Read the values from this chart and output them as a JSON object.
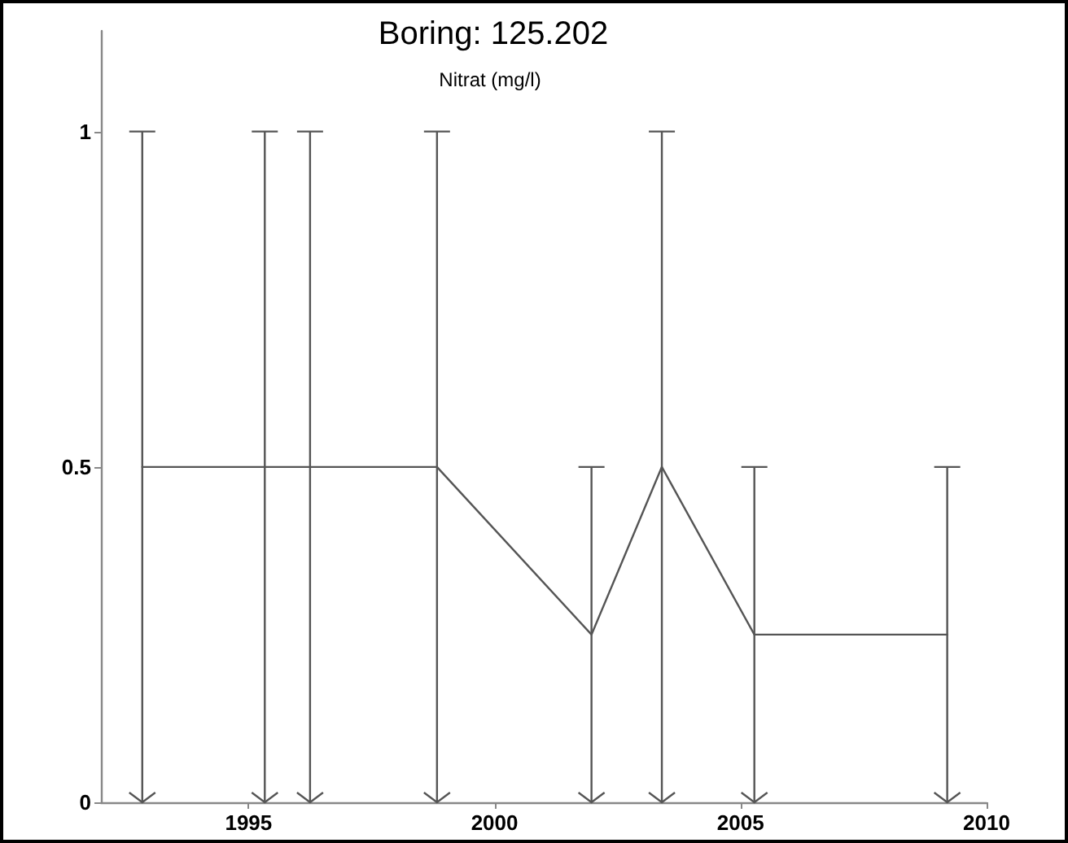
{
  "chart_data": {
    "type": "line",
    "title": "Boring: 125.202",
    "subtitle": "Nitrat (mg/l)",
    "x": [
      1992.84,
      1995.33,
      1996.25,
      1998.83,
      2001.97,
      2003.4,
      2005.28,
      2009.2
    ],
    "series": [
      {
        "color": "#555555",
        "values": [
          0.5,
          0.5,
          0.5,
          0.5,
          0.25,
          0.5,
          0.25,
          0.25
        ],
        "errors": [
          [
            0,
            1
          ],
          [
            0,
            1
          ],
          [
            0,
            1
          ],
          [
            0,
            1
          ],
          [
            0,
            0.5
          ],
          [
            0,
            1
          ],
          [
            0,
            0.5
          ],
          [
            0,
            0.5
          ]
        ]
      }
    ],
    "xlim": [
      1992,
      2010
    ],
    "xticks": [
      1995,
      2000,
      2005,
      2010
    ],
    "ylim": [
      0,
      1.15
    ],
    "yticks": [
      0,
      0.5,
      1
    ],
    "grid": false,
    "marker": "none",
    "line_style": "solid"
  }
}
